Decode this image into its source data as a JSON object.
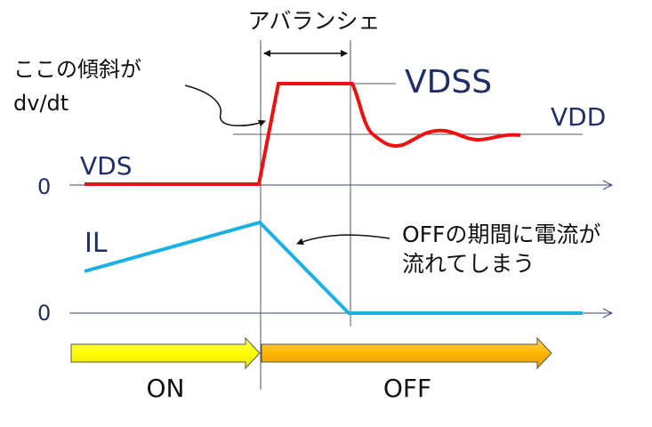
{
  "labels": {
    "avalanche": "アバランシェ",
    "slope_line1": "ここの傾斜が",
    "slope_line2": "dv/dt",
    "vdss": "VDSS",
    "vdd": "VDD",
    "vds": "VDS",
    "zero_top": "0",
    "il": "IL",
    "zero_bottom": "0",
    "off_current_line1": "OFFの期間に電流が",
    "off_current_line2": "流れてしまう",
    "on": "ON",
    "off": "OFF"
  },
  "colors": {
    "vds_trace": "#ee1111",
    "il_trace": "#19b0e6",
    "on_arrow": "#ffff00",
    "off_arrow": "#ffb800",
    "label_text": "#1f2f66",
    "axis": "#2f3f70"
  },
  "icons": {
    "arrow_icon": "double-headed-arrow"
  }
}
